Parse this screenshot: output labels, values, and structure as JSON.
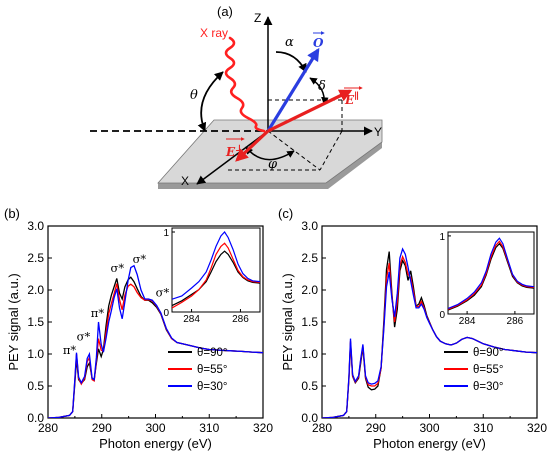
{
  "schematic": {
    "panel_label": "(a)",
    "xray_label": "X ray",
    "axis_z": "Z",
    "axis_y": "Y",
    "axis_x": "X",
    "theta": "θ",
    "alpha": "α",
    "delta": "δ",
    "phi": "φ",
    "vec_o": "O",
    "vec_e_par": "E",
    "vec_e_par_sup": "∥",
    "vec_e_perp": "E",
    "vec_e_perp_sup": "⊥",
    "colors": {
      "xray": "#ff2020",
      "o_vector": "#2a3de0",
      "e_vectors": "#e82020"
    }
  },
  "chart_data": [
    {
      "panel_label": "(b)",
      "type": "line",
      "xlabel": "Photon energy (eV)",
      "ylabel": "PEY signal (a.u.)",
      "xlim": [
        280,
        320
      ],
      "ylim": [
        0,
        3.0
      ],
      "xticks": [
        "280",
        "290",
        "300",
        "310",
        "320"
      ],
      "yticks": [
        "0.0",
        "0.5",
        "1.0",
        "1.5",
        "2.0",
        "2.5",
        "3.0"
      ],
      "legend_position": "lower-right",
      "annotations": [
        {
          "text": "π*",
          "x": 284.0,
          "y": 1.0
        },
        {
          "text": "σ*",
          "x": 286.6,
          "y": 1.21
        },
        {
          "text": "π*",
          "x": 289.2,
          "y": 1.58
        },
        {
          "text": "σ*",
          "x": 292.9,
          "y": 2.28
        },
        {
          "text": "σ*",
          "x": 297.0,
          "y": 2.42
        },
        {
          "text": "σ*",
          "x": 301.3,
          "y": 1.9
        }
      ],
      "series": [
        {
          "name": "θ=90°",
          "color": "#000000",
          "x": [
            280,
            282,
            284,
            284.6,
            285.0,
            285.3,
            285.7,
            286.2,
            286.8,
            287.3,
            287.7,
            288.2,
            288.6,
            289.0,
            289.4,
            289.9,
            290.3,
            290.8,
            291.3,
            291.8,
            292.3,
            292.8,
            293.3,
            293.8,
            294.3,
            294.9,
            295.4,
            296.0,
            296.6,
            297.3,
            298.0,
            298.7,
            299.4,
            300.2,
            301.0,
            302.0,
            303.0,
            304.0,
            305.5,
            307.0,
            308.5,
            310.0,
            312.0,
            314.0,
            316.0,
            318.0,
            320.0
          ],
          "y": [
            0.0,
            0.01,
            0.04,
            0.1,
            0.55,
            0.92,
            0.6,
            0.54,
            0.6,
            0.8,
            0.86,
            0.62,
            0.6,
            0.86,
            1.08,
            0.96,
            1.07,
            1.45,
            1.75,
            1.92,
            2.05,
            2.18,
            1.95,
            1.86,
            2.05,
            2.16,
            2.2,
            2.13,
            2.02,
            1.9,
            1.84,
            1.84,
            1.8,
            1.73,
            1.62,
            1.38,
            1.24,
            1.18,
            1.15,
            1.12,
            1.09,
            1.07,
            1.06,
            1.05,
            1.04,
            1.03,
            1.02
          ]
        },
        {
          "name": "θ=55°",
          "color": "#ff0000",
          "x": [
            280,
            282,
            284,
            284.6,
            285.0,
            285.3,
            285.7,
            286.2,
            286.8,
            287.3,
            287.7,
            288.2,
            288.6,
            289.0,
            289.4,
            289.9,
            290.3,
            290.8,
            291.3,
            291.8,
            292.3,
            292.8,
            293.3,
            293.8,
            294.3,
            294.9,
            295.4,
            296.0,
            296.6,
            297.3,
            298.0,
            298.7,
            299.4,
            300.2,
            301.0,
            302.0,
            303.0,
            304.0,
            305.5,
            307.0,
            308.5,
            310.0,
            312.0,
            314.0,
            316.0,
            318.0,
            320.0
          ],
          "y": [
            0.0,
            0.01,
            0.04,
            0.1,
            0.6,
            1.0,
            0.62,
            0.53,
            0.62,
            0.88,
            0.94,
            0.6,
            0.58,
            0.9,
            1.24,
            1.06,
            1.04,
            1.34,
            1.63,
            1.79,
            1.94,
            2.1,
            1.85,
            1.69,
            1.92,
            2.06,
            2.09,
            2.05,
            1.96,
            1.88,
            1.84,
            1.85,
            1.83,
            1.75,
            1.63,
            1.39,
            1.24,
            1.18,
            1.15,
            1.12,
            1.09,
            1.07,
            1.06,
            1.05,
            1.04,
            1.03,
            1.02
          ]
        },
        {
          "name": "θ=30°",
          "color": "#0000ff",
          "x": [
            280,
            282,
            284,
            284.6,
            285.0,
            285.3,
            285.7,
            286.2,
            286.8,
            287.3,
            287.7,
            288.2,
            288.6,
            289.0,
            289.4,
            289.9,
            290.3,
            290.8,
            291.3,
            291.8,
            292.3,
            292.8,
            293.3,
            293.8,
            294.3,
            294.9,
            295.4,
            296.0,
            296.6,
            297.3,
            298.0,
            298.7,
            299.4,
            300.2,
            301.0,
            302.0,
            303.0,
            304.0,
            305.5,
            307.0,
            308.5,
            310.0,
            312.0,
            314.0,
            316.0,
            318.0,
            320.0
          ],
          "y": [
            0.0,
            0.01,
            0.04,
            0.1,
            0.62,
            1.02,
            0.64,
            0.55,
            0.65,
            0.93,
            1.0,
            0.62,
            0.6,
            0.95,
            1.5,
            1.15,
            1.03,
            1.25,
            1.5,
            1.68,
            1.88,
            2.02,
            1.72,
            1.55,
            1.82,
            2.15,
            2.35,
            2.38,
            2.24,
            2.0,
            1.86,
            1.86,
            1.84,
            1.76,
            1.64,
            1.4,
            1.25,
            1.18,
            1.15,
            1.12,
            1.09,
            1.07,
            1.06,
            1.05,
            1.04,
            1.03,
            1.02
          ]
        }
      ],
      "inset": {
        "xlim": [
          283.2,
          286.8
        ],
        "ylim": [
          0,
          1.05
        ],
        "xticks": [
          "284",
          "286"
        ],
        "yticks": [
          "0",
          "1"
        ],
        "series": [
          {
            "name": "θ=90°",
            "color": "#000000",
            "x": [
              283.2,
              283.6,
              284.0,
              284.3,
              284.6,
              284.8,
              285.0,
              285.2,
              285.35,
              285.5,
              285.7,
              285.9,
              286.1,
              286.3,
              286.5,
              286.8
            ],
            "y": [
              0.08,
              0.14,
              0.22,
              0.28,
              0.38,
              0.5,
              0.63,
              0.72,
              0.76,
              0.72,
              0.62,
              0.5,
              0.43,
              0.39,
              0.37,
              0.36
            ]
          },
          {
            "name": "θ=55°",
            "color": "#ff0000",
            "x": [
              283.2,
              283.6,
              284.0,
              284.3,
              284.6,
              284.8,
              285.0,
              285.2,
              285.35,
              285.5,
              285.7,
              285.9,
              286.1,
              286.3,
              286.5,
              286.8
            ],
            "y": [
              0.05,
              0.12,
              0.2,
              0.28,
              0.4,
              0.55,
              0.72,
              0.82,
              0.86,
              0.8,
              0.66,
              0.52,
              0.44,
              0.4,
              0.38,
              0.37
            ]
          },
          {
            "name": "θ=30°",
            "color": "#0000ff",
            "x": [
              283.2,
              283.6,
              284.0,
              284.3,
              284.6,
              284.8,
              285.0,
              285.2,
              285.35,
              285.5,
              285.7,
              285.9,
              286.1,
              286.3,
              286.5,
              286.8
            ],
            "y": [
              0.16,
              0.2,
              0.3,
              0.38,
              0.5,
              0.65,
              0.82,
              0.95,
              1.0,
              0.93,
              0.78,
              0.6,
              0.48,
              0.42,
              0.39,
              0.38
            ]
          }
        ]
      }
    },
    {
      "panel_label": "(c)",
      "type": "line",
      "xlabel": "Photon energy (eV)",
      "ylabel": "PEY signal (a.u.)",
      "xlim": [
        280,
        320
      ],
      "ylim": [
        0,
        3.0
      ],
      "xticks": [
        "280",
        "290",
        "300",
        "310",
        "320"
      ],
      "yticks": [
        "0.0",
        "0.5",
        "1.0",
        "1.5",
        "2.0",
        "2.5",
        "3.0"
      ],
      "legend_position": "lower-right",
      "series": [
        {
          "name": "θ=90°",
          "color": "#000000",
          "x": [
            280,
            282,
            284,
            284.6,
            285.0,
            285.3,
            285.7,
            286.2,
            286.8,
            287.2,
            287.6,
            288.1,
            288.6,
            289.2,
            289.8,
            290.4,
            291.0,
            291.5,
            292.0,
            292.5,
            293.0,
            293.5,
            294.0,
            294.5,
            295.0,
            295.5,
            296.0,
            296.5,
            297.0,
            297.5,
            298.0,
            298.5,
            299.0,
            299.5,
            300.0,
            300.6,
            301.3,
            302.0,
            303.0,
            304.0,
            305.0,
            306.0,
            307.0,
            308.0,
            309.0,
            310.0,
            312.0,
            314.0,
            316.0,
            318.0,
            320.0
          ],
          "y": [
            0.0,
            0.01,
            0.04,
            0.1,
            0.6,
            1.18,
            0.65,
            0.55,
            0.62,
            0.86,
            1.1,
            0.62,
            0.48,
            0.44,
            0.45,
            0.5,
            0.78,
            1.5,
            2.32,
            2.6,
            1.95,
            1.42,
            1.7,
            2.3,
            2.46,
            2.38,
            2.15,
            2.3,
            2.05,
            1.75,
            1.78,
            1.88,
            1.76,
            1.6,
            1.5,
            1.38,
            1.27,
            1.2,
            1.16,
            1.14,
            1.17,
            1.23,
            1.26,
            1.24,
            1.2,
            1.16,
            1.11,
            1.07,
            1.05,
            1.03,
            1.02
          ]
        },
        {
          "name": "θ=55°",
          "color": "#ff0000",
          "x": [
            280,
            282,
            284,
            284.6,
            285.0,
            285.3,
            285.7,
            286.2,
            286.8,
            287.2,
            287.6,
            288.1,
            288.6,
            289.2,
            289.8,
            290.4,
            291.0,
            291.5,
            292.0,
            292.5,
            293.0,
            293.5,
            294.0,
            294.5,
            295.0,
            295.5,
            296.0,
            296.5,
            297.0,
            297.5,
            298.0,
            298.5,
            299.0,
            299.5,
            300.0,
            300.6,
            301.3,
            302.0,
            303.0,
            304.0,
            305.0,
            306.0,
            307.0,
            308.0,
            309.0,
            310.0,
            312.0,
            314.0,
            316.0,
            318.0,
            320.0
          ],
          "y": [
            0.0,
            0.01,
            0.04,
            0.1,
            0.62,
            1.2,
            0.66,
            0.56,
            0.64,
            0.9,
            1.12,
            0.64,
            0.52,
            0.5,
            0.5,
            0.54,
            0.78,
            1.42,
            2.18,
            2.42,
            1.9,
            1.5,
            1.82,
            2.38,
            2.52,
            2.43,
            2.24,
            2.2,
            1.98,
            1.74,
            1.74,
            1.82,
            1.72,
            1.58,
            1.49,
            1.38,
            1.27,
            1.2,
            1.16,
            1.14,
            1.17,
            1.23,
            1.26,
            1.24,
            1.2,
            1.16,
            1.11,
            1.07,
            1.05,
            1.03,
            1.02
          ]
        },
        {
          "name": "θ=30°",
          "color": "#0000ff",
          "x": [
            280,
            282,
            284,
            284.6,
            285.0,
            285.3,
            285.7,
            286.2,
            286.8,
            287.2,
            287.6,
            288.1,
            288.6,
            289.2,
            289.8,
            290.4,
            291.0,
            291.5,
            292.0,
            292.5,
            293.0,
            293.5,
            294.0,
            294.5,
            295.0,
            295.5,
            296.0,
            296.5,
            297.0,
            297.5,
            298.0,
            298.5,
            299.0,
            299.5,
            300.0,
            300.6,
            301.3,
            302.0,
            303.0,
            304.0,
            305.0,
            306.0,
            307.0,
            308.0,
            309.0,
            310.0,
            312.0,
            314.0,
            316.0,
            318.0,
            320.0
          ],
          "y": [
            0.0,
            0.01,
            0.04,
            0.1,
            0.64,
            1.24,
            0.68,
            0.57,
            0.66,
            0.92,
            1.15,
            0.66,
            0.55,
            0.53,
            0.54,
            0.58,
            0.8,
            1.38,
            2.05,
            2.28,
            1.86,
            1.58,
            1.95,
            2.5,
            2.64,
            2.56,
            2.36,
            2.14,
            1.92,
            1.72,
            1.72,
            1.78,
            1.7,
            1.57,
            1.48,
            1.38,
            1.27,
            1.2,
            1.16,
            1.14,
            1.17,
            1.23,
            1.26,
            1.24,
            1.2,
            1.16,
            1.11,
            1.07,
            1.05,
            1.03,
            1.02
          ]
        }
      ],
      "inset": {
        "xlim": [
          283.2,
          286.8
        ],
        "ylim": [
          0,
          1.05
        ],
        "xticks": [
          "284",
          "286"
        ],
        "yticks": [
          "0",
          "1"
        ],
        "series": [
          {
            "name": "θ=90°",
            "color": "#000000",
            "x": [
              283.2,
              283.6,
              284.0,
              284.3,
              284.6,
              284.8,
              285.0,
              285.2,
              285.35,
              285.5,
              285.7,
              285.9,
              286.1,
              286.3,
              286.5,
              286.8
            ],
            "y": [
              0.05,
              0.1,
              0.17,
              0.24,
              0.35,
              0.5,
              0.7,
              0.85,
              0.9,
              0.84,
              0.66,
              0.48,
              0.4,
              0.36,
              0.34,
              0.33
            ]
          },
          {
            "name": "θ=55°",
            "color": "#ff0000",
            "x": [
              283.2,
              283.6,
              284.0,
              284.3,
              284.6,
              284.8,
              285.0,
              285.2,
              285.35,
              285.5,
              285.7,
              285.9,
              286.1,
              286.3,
              286.5,
              286.8
            ],
            "y": [
              0.06,
              0.11,
              0.18,
              0.26,
              0.37,
              0.52,
              0.73,
              0.88,
              0.93,
              0.86,
              0.68,
              0.5,
              0.41,
              0.37,
              0.35,
              0.34
            ]
          },
          {
            "name": "θ=30°",
            "color": "#0000ff",
            "x": [
              283.2,
              283.6,
              284.0,
              284.3,
              284.6,
              284.8,
              285.0,
              285.2,
              285.35,
              285.5,
              285.7,
              285.9,
              286.1,
              286.3,
              286.5,
              286.8
            ],
            "y": [
              0.07,
              0.12,
              0.2,
              0.28,
              0.4,
              0.55,
              0.77,
              0.92,
              0.97,
              0.9,
              0.7,
              0.51,
              0.42,
              0.38,
              0.36,
              0.35
            ]
          }
        ]
      }
    }
  ]
}
